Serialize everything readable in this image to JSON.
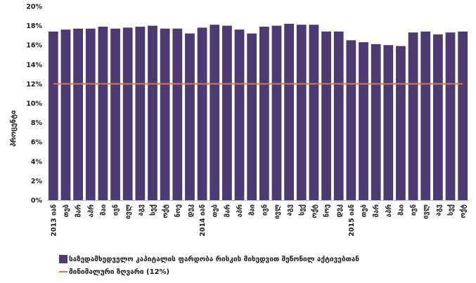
{
  "chart_data": {
    "type": "bar",
    "ylabel": "პროცენტი",
    "ylim": [
      0,
      20
    ],
    "y_tick_labels": [
      "0%",
      "2%",
      "4%",
      "6%",
      "8%",
      "10%",
      "12%",
      "14%",
      "16%",
      "18%",
      "20%"
    ],
    "categories": [
      "2013 იან",
      "თებ",
      "მარ",
      "აპრ",
      "მაი",
      "ივნ",
      "ივლ",
      "აგვ",
      "სექ",
      "ოქტ",
      "ნოე",
      "დეკ",
      "2014 იან",
      "თებ",
      "მარ",
      "აპრ",
      "მაი",
      "ივნ",
      "ივლ",
      "აგვ",
      "სექ",
      "ოქტ",
      "ნოე",
      "დეკ",
      "2015 იან",
      "თებ",
      "მარ",
      "აპრ",
      "მაი",
      "ივნ",
      "ივლ",
      "აგვ",
      "სექ",
      "ოქტ"
    ],
    "series": [
      {
        "name": "საზედამხედველო კაპიტალის ფარდობა რისკის მიხედვით შეწონილ აქტივებთან",
        "type": "bar",
        "color": "#4b3b72",
        "values": [
          17.4,
          17.6,
          17.7,
          17.7,
          17.9,
          17.7,
          17.8,
          17.9,
          18.0,
          17.7,
          17.7,
          17.2,
          17.8,
          18.1,
          18.0,
          17.6,
          17.2,
          17.9,
          18.0,
          18.2,
          18.1,
          18.1,
          17.4,
          17.4,
          16.5,
          16.3,
          16.1,
          16.0,
          15.9,
          17.3,
          17.4,
          17.1,
          17.3,
          17.4
        ]
      },
      {
        "name": "მინიმალური ზღვარი (12%)",
        "type": "line",
        "color": "#e8703a",
        "value": 12
      }
    ]
  }
}
